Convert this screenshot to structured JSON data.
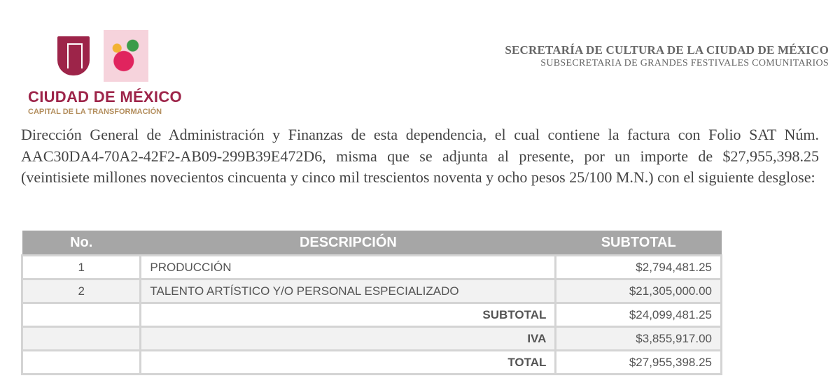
{
  "logo": {
    "name": "CIUDAD DE MÉXICO",
    "tagline": "CAPITAL DE LA TRANSFORMACIÓN",
    "colors": {
      "primary": "#9d2449",
      "secondary": "#b38e5d"
    }
  },
  "header": {
    "line1": "SECRETARÍA DE CULTURA DE LA CIUDAD DE MÉXICO",
    "line2": "SUBSECRETARIA DE GRANDES FESTIVALES COMUNITARIOS"
  },
  "body": {
    "paragraph": "Dirección General de Administración y Finanzas de esta dependencia, el cual contiene la factura con Folio SAT Núm. AAC30DA4-70A2-42F2-AB09-299B39E472D6, misma que se adjunta al presente, por un importe de $27,955,398.25 (veintisiete millones novecientos cincuenta y cinco mil trescientos noventa y ocho pesos 25/100 M.N.) con el siguiente desglose:"
  },
  "table": {
    "headers": [
      "No.",
      "DESCRIPCIÓN",
      "SUBTOTAL"
    ],
    "rows": [
      {
        "no": "1",
        "desc": "PRODUCCIÓN",
        "amount": "$2,794,481.25"
      },
      {
        "no": "2",
        "desc": "TALENTO ARTÍSTICO Y/O PERSONAL ESPECIALIZADO",
        "amount": "$21,305,000.00"
      }
    ],
    "totals": [
      {
        "label": "SUBTOTAL",
        "amount": "$24,099,481.25"
      },
      {
        "label": "IVA",
        "amount": "$3,855,917.00"
      },
      {
        "label": "TOTAL",
        "amount": "$27,955,398.25"
      }
    ]
  }
}
